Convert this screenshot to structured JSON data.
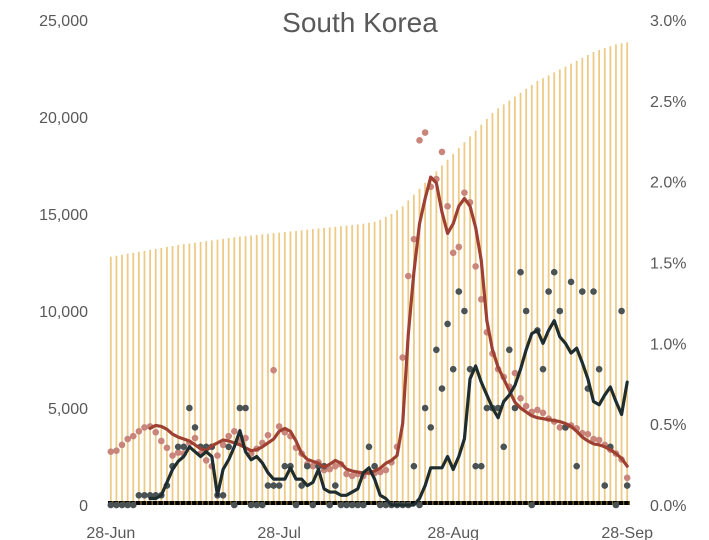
{
  "chart_data": {
    "type": "bar",
    "title": "South Korea",
    "x_ticks": [
      "28-Jun",
      "28-Jul",
      "28-Aug",
      "28-Sep"
    ],
    "y_left": {
      "range": [
        0,
        25000
      ],
      "ticks": [
        "0",
        "5,000",
        "10,000",
        "15,000",
        "20,000",
        "25,000"
      ]
    },
    "y_right": {
      "range": [
        0,
        3.0
      ],
      "ticks": [
        "0.0%",
        "0.5%",
        "1.0%",
        "1.5%",
        "2.0%",
        "2.5%",
        "3.0%"
      ]
    },
    "grid": false,
    "legend": "none",
    "colors": {
      "bars": "#eccb87",
      "red_line": "#9e4133",
      "red_dots": "#c9857a",
      "dark_line": "#1f2d2e",
      "dark_dots": "#4a5253",
      "baseline": "#000000"
    },
    "series": [
      {
        "type": "bar",
        "axis": "left",
        "note": "cumulative",
        "days": 93,
        "values": [
          12800,
          12850,
          12900,
          12950,
          13000,
          13050,
          13100,
          13150,
          13200,
          13250,
          13300,
          13350,
          13400,
          13450,
          13480,
          13520,
          13560,
          13600,
          13640,
          13680,
          13720,
          13760,
          13800,
          13830,
          13860,
          13890,
          13920,
          13950,
          13980,
          14010,
          14040,
          14070,
          14100,
          14130,
          14160,
          14190,
          14220,
          14250,
          14280,
          14310,
          14340,
          14370,
          14400,
          14430,
          14460,
          14500,
          14550,
          14600,
          14700,
          14850,
          15000,
          15200,
          15400,
          15700,
          16000,
          16300,
          16600,
          16900,
          17200,
          17500,
          17800,
          18100,
          18400,
          18700,
          19000,
          19300,
          19600,
          19900,
          20200,
          20450,
          20650,
          20850,
          21050,
          21250,
          21450,
          21650,
          21850,
          22000,
          22150,
          22300,
          22450,
          22600,
          22750,
          22900,
          23050,
          23200,
          23350,
          23450,
          23550,
          23650,
          23750,
          23800,
          23850
        ]
      },
      {
        "type": "line",
        "axis": "left",
        "note": "red line",
        "values": [
          null,
          null,
          null,
          null,
          null,
          null,
          null,
          3950,
          4100,
          4050,
          3900,
          3650,
          3500,
          3400,
          3300,
          3100,
          2900,
          2800,
          3050,
          3200,
          3350,
          3300,
          3200,
          3100,
          2950,
          2800,
          2850,
          3000,
          3200,
          3400,
          3800,
          3950,
          3800,
          3300,
          2650,
          2350,
          2250,
          2150,
          1950,
          2100,
          2300,
          2150,
          1850,
          1750,
          1700,
          1650,
          1650,
          1750,
          1900,
          2150,
          2300,
          2550,
          4200,
          8800,
          12000,
          14500,
          15800,
          16900,
          16600,
          15100,
          14000,
          14500,
          15400,
          15800,
          15400,
          14300,
          12600,
          9500,
          8000,
          7100,
          6500,
          5900,
          5300,
          5000,
          4800,
          4600,
          4500,
          4450,
          4400,
          4350,
          4300,
          4200,
          4050,
          3800,
          3500,
          3300,
          3150,
          3100,
          3000,
          2850,
          2650,
          2400,
          2000
        ]
      },
      {
        "type": "scatter",
        "axis": "left",
        "note": "red dots",
        "values": [
          2750,
          2800,
          3100,
          3400,
          3550,
          3800,
          4000,
          4050,
          3750,
          3300,
          2950,
          2550,
          2700,
          2650,
          3200,
          3450,
          2650,
          2300,
          2000,
          2550,
          3100,
          3550,
          3800,
          3300,
          3450,
          2650,
          2900,
          3200,
          3600,
          6950,
          4050,
          3750,
          3550,
          2950,
          2650,
          2100,
          2000,
          2200,
          1800,
          1850,
          2000,
          2100,
          1600,
          1500,
          1600,
          1500,
          1700,
          1650,
          1700,
          1800,
          2200,
          3000,
          7600,
          11800,
          13700,
          18800,
          19200,
          16400,
          16800,
          18200,
          15400,
          13000,
          13300,
          16100,
          15600,
          12300,
          10600,
          8900,
          7800,
          7000,
          6600,
          6100,
          6800,
          5500,
          5100,
          4800,
          4900,
          4750,
          4450,
          4300,
          4000,
          4000,
          4100,
          3950,
          3700,
          3650,
          3400,
          3350,
          3100,
          2850,
          2650,
          2350,
          1400
        ]
      },
      {
        "type": "line",
        "axis": "right",
        "note": "dark line",
        "values": [
          null,
          null,
          null,
          null,
          null,
          null,
          null,
          0.04,
          0.04,
          0.06,
          0.14,
          0.22,
          0.27,
          0.3,
          0.36,
          0.33,
          0.3,
          0.33,
          0.3,
          0.06,
          0.22,
          0.28,
          0.36,
          0.46,
          0.33,
          0.28,
          0.3,
          0.26,
          0.2,
          0.16,
          0.16,
          0.16,
          0.23,
          0.16,
          0.16,
          0.12,
          0.14,
          0.22,
          0.1,
          0.08,
          0.08,
          0.06,
          0.06,
          0.08,
          0.1,
          0.2,
          0.23,
          0.16,
          0.06,
          0.04,
          0.0,
          0.0,
          0.0,
          0.0,
          0.0,
          0.04,
          0.12,
          0.23,
          0.23,
          0.23,
          0.3,
          0.22,
          0.3,
          0.41,
          0.78,
          0.86,
          0.76,
          0.68,
          0.6,
          0.54,
          0.64,
          0.68,
          0.74,
          0.84,
          0.96,
          1.06,
          1.08,
          1.0,
          1.08,
          1.14,
          1.04,
          1.0,
          0.94,
          0.97,
          0.88,
          0.78,
          0.64,
          0.62,
          0.68,
          0.73,
          0.64,
          0.56,
          0.76
        ]
      },
      {
        "type": "scatter",
        "axis": "right",
        "note": "dark dots",
        "values": [
          0.0,
          0.0,
          0.0,
          0.0,
          0.0,
          0.06,
          0.06,
          0.06,
          0.06,
          0.06,
          0.12,
          0.24,
          0.36,
          0.36,
          0.6,
          0.48,
          0.36,
          0.36,
          0.36,
          0.06,
          0.06,
          0.36,
          0.0,
          0.6,
          0.6,
          0.0,
          0.0,
          0.0,
          0.12,
          0.12,
          0.12,
          0.24,
          0.24,
          0.0,
          0.12,
          0.24,
          0.0,
          0.24,
          0.24,
          0.0,
          0.12,
          0.0,
          0.0,
          0.0,
          0.0,
          0.0,
          0.36,
          0.24,
          0.0,
          0.0,
          0.0,
          0.0,
          0.0,
          0.0,
          0.24,
          0.0,
          0.6,
          0.48,
          0.96,
          0.72,
          1.12,
          0.84,
          1.32,
          1.2,
          0.84,
          0.24,
          0.24,
          0.6,
          0.6,
          0.6,
          0.36,
          0.96,
          0.6,
          1.44,
          1.2,
          0.0,
          1.08,
          0.84,
          1.32,
          1.44,
          1.2,
          0.48,
          1.38,
          0.24,
          1.32,
          0.72,
          1.32,
          0.84,
          0.12,
          0.36,
          0.0,
          1.2,
          0.12
        ]
      }
    ]
  }
}
